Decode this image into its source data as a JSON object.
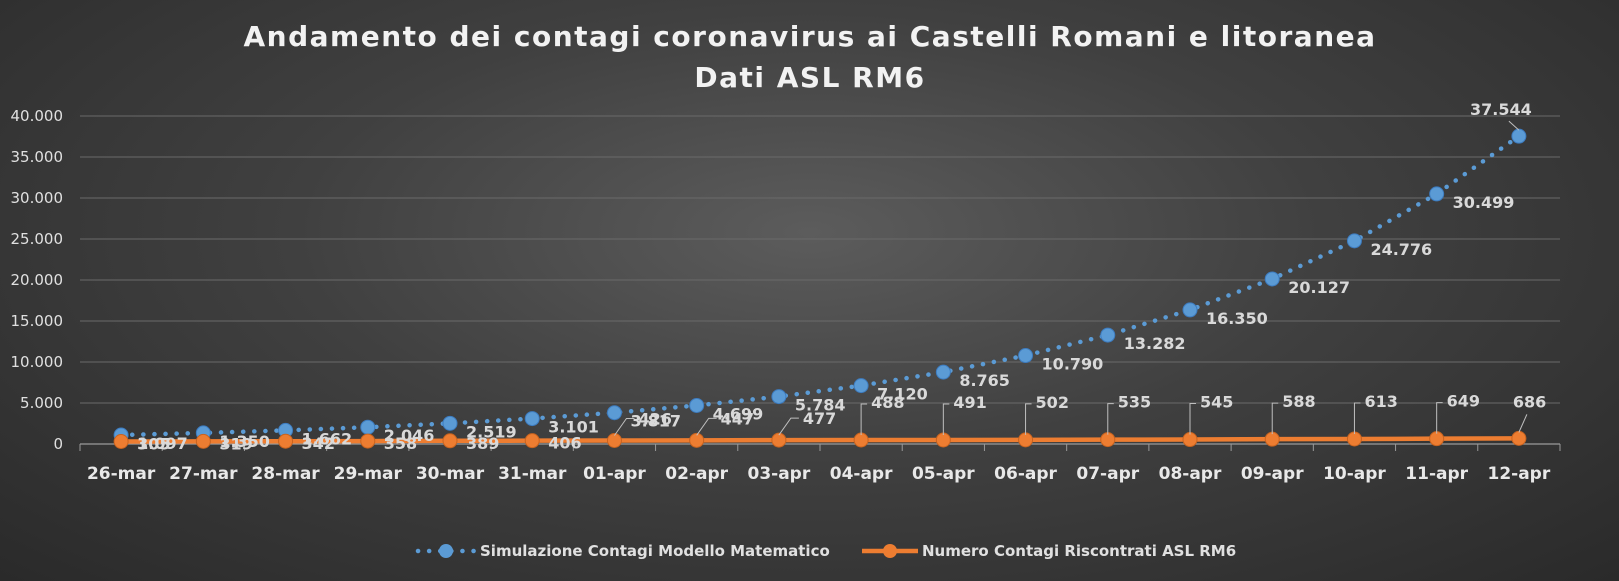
{
  "chart_data": {
    "type": "line",
    "title": "Andamento dei contagi coronavirus ai Castelli Romani e litoranea",
    "subtitle": "Dati ASL RM6",
    "xlabel": "",
    "ylabel": "",
    "ylim": [
      0,
      40000
    ],
    "yticks": [
      "0",
      "5.000",
      "10.000",
      "15.000",
      "20.000",
      "25.000",
      "30.000",
      "35.000",
      "40.000"
    ],
    "grid": true,
    "legend_position": "bottom",
    "categories": [
      "26-mar",
      "27-mar",
      "28-mar",
      "29-mar",
      "30-mar",
      "31-mar",
      "01-apr",
      "02-apr",
      "03-apr",
      "04-apr",
      "05-apr",
      "06-apr",
      "07-apr",
      "08-apr",
      "09-apr",
      "10-apr",
      "11-apr",
      "12-apr"
    ],
    "series": [
      {
        "name": "Simulazione Contagi Modello Matematico",
        "color": "#5b9bd5",
        "style": "dotted-with-markers",
        "values": [
          1097,
          1350,
          1662,
          2046,
          2519,
          3101,
          3817,
          4699,
          5784,
          7120,
          8765,
          10790,
          13282,
          16350,
          20127,
          24776,
          30499,
          37544
        ],
        "labels": [
          "1.097",
          "1.350",
          "1.662",
          "2.046",
          "2.519",
          "3.101",
          "3.817",
          "4.699",
          "5.784",
          "7.120",
          "8.765",
          "10.790",
          "13.282",
          "16.350",
          "20.127",
          "24.776",
          "30.499",
          "37.544"
        ]
      },
      {
        "name": "Numero Contagi Riscontrati ASL RM6",
        "color": "#ed7d31",
        "style": "solid-with-markers",
        "values": [
          305,
          319,
          342,
          358,
          389,
          406,
          426,
          447,
          477,
          488,
          491,
          502,
          535,
          545,
          588,
          613,
          649,
          686
        ],
        "labels": [
          "305",
          "319",
          "342",
          "358",
          "389",
          "406",
          "426",
          "447",
          "477",
          "488",
          "491",
          "502",
          "535",
          "545",
          "588",
          "613",
          "649",
          "686"
        ]
      }
    ]
  }
}
